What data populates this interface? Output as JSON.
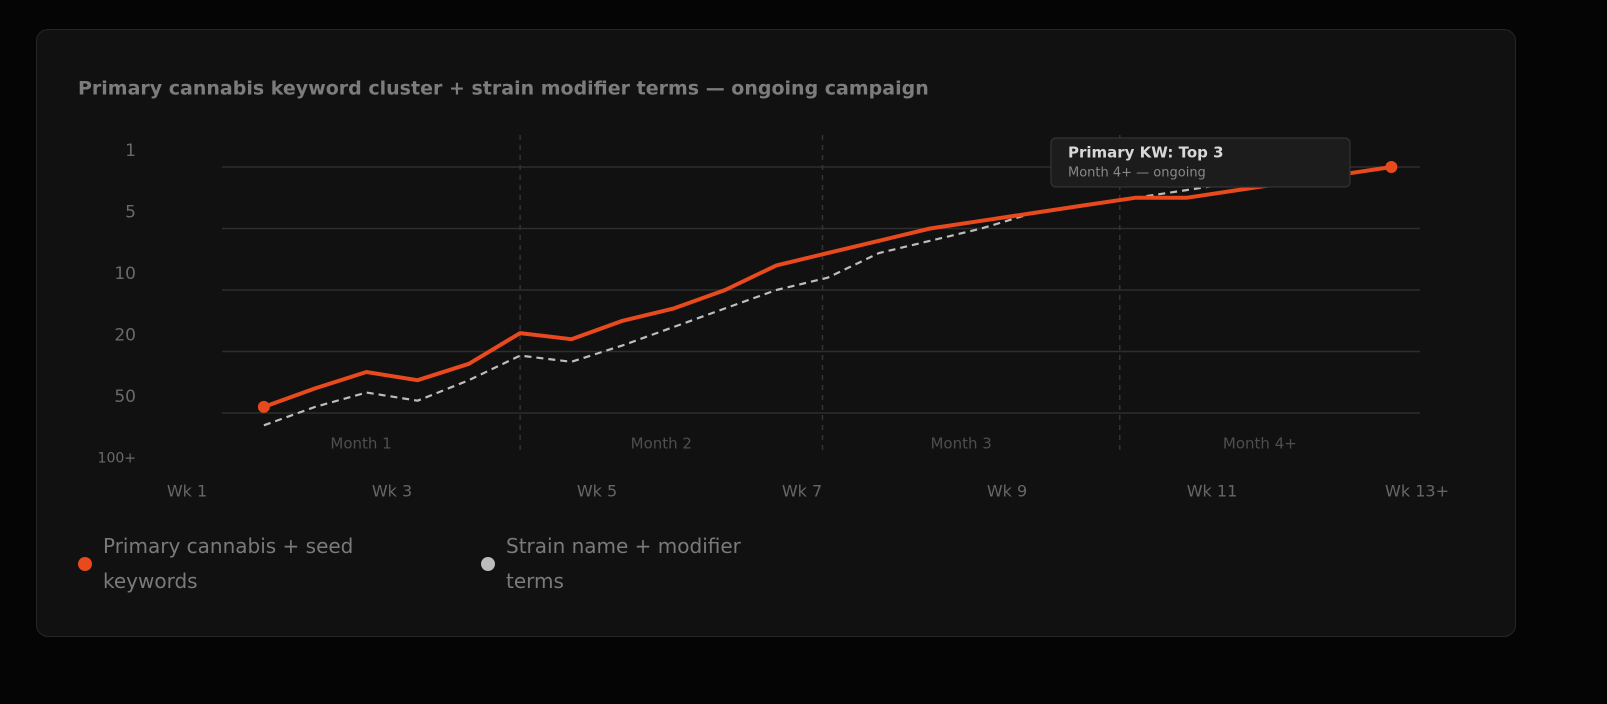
{
  "chart_data": {
    "type": "line",
    "title": "Primary cannabis keyword cluster + strain modifier terms — ongoing campaign",
    "x": [
      1.75,
      2.25,
      2.75,
      3.25,
      3.75,
      4.25,
      4.75,
      5.25,
      5.75,
      6.25,
      6.75,
      7.25,
      7.75,
      8.25,
      8.75,
      9.25,
      9.75,
      10.25,
      10.75,
      11.25,
      11.75,
      12.25,
      12.75
    ],
    "xlim": [
      1,
      13
    ],
    "xticks": [
      {
        "value": 1,
        "label": "Wk 1"
      },
      {
        "value": 3,
        "label": "Wk 3"
      },
      {
        "value": 5,
        "label": "Wk 5"
      },
      {
        "value": 7,
        "label": "Wk 7"
      },
      {
        "value": 9,
        "label": "Wk 9"
      },
      {
        "value": 11,
        "label": "Wk 11"
      },
      {
        "value": 13,
        "label": "Wk 13+"
      }
    ],
    "ylim": [
      100,
      1
    ],
    "yticks": [
      1,
      5,
      10,
      20,
      50,
      {
        "value": 100,
        "label": "100+"
      }
    ],
    "y_scale": "rank-bands",
    "grid": true,
    "month_dividers": [
      4.25,
      7.2,
      10.1
    ],
    "months": [
      "Month 1",
      "Month 2",
      "Month 3",
      "Month 4+"
    ],
    "series": [
      {
        "name": "Primary cannabis + seed keywords",
        "color": "#e8491d",
        "line_style": "solid",
        "end_markers": true,
        "values": [
          47,
          38,
          30,
          34,
          26,
          17,
          18,
          15,
          13,
          10,
          8,
          7,
          6,
          5,
          4.5,
          4,
          3.5,
          3,
          3,
          2.5,
          2,
          1.5,
          1
        ]
      },
      {
        "name": "Strain name + modifier terms",
        "color": "#bdbdbd",
        "line_style": "dashed",
        "end_markers": false,
        "values": [
          60,
          47,
          40,
          44,
          34,
          22,
          25,
          19,
          16,
          13,
          10,
          9,
          7,
          6,
          5,
          4,
          3.5,
          3,
          2.5,
          2,
          2,
          1.5,
          1
        ]
      }
    ],
    "annotation": {
      "title": "Primary KW: Top 3",
      "text": "Month 4+ — ongoing"
    }
  }
}
